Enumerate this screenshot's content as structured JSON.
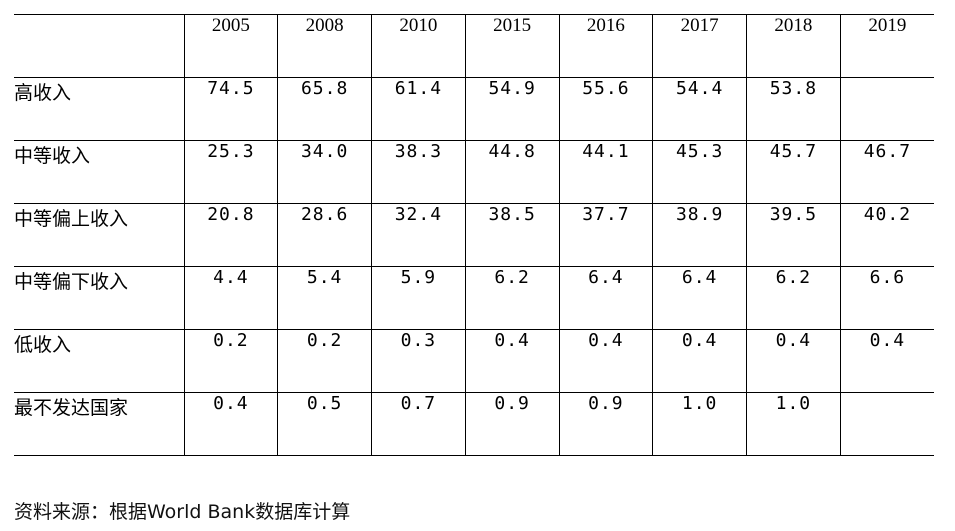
{
  "table": {
    "header_blank": "",
    "years": [
      "2005",
      "2008",
      "2010",
      "2015",
      "2016",
      "2017",
      "2018",
      "2019"
    ],
    "rows": [
      {
        "label": "高收入",
        "values": [
          "74.5",
          "65.8",
          "61.4",
          "54.9",
          "55.6",
          "54.4",
          "53.8",
          ""
        ]
      },
      {
        "label": "中等收入",
        "values": [
          "25.3",
          "34.0",
          "38.3",
          "44.8",
          "44.1",
          "45.3",
          "45.7",
          "46.7"
        ]
      },
      {
        "label": "中等偏上收入",
        "values": [
          "20.8",
          "28.6",
          "32.4",
          "38.5",
          "37.7",
          "38.9",
          "39.5",
          "40.2"
        ]
      },
      {
        "label": "中等偏下收入",
        "values": [
          "4.4",
          "5.4",
          "5.9",
          "6.2",
          "6.4",
          "6.4",
          "6.2",
          "6.6"
        ]
      },
      {
        "label": "低收入",
        "values": [
          "0.2",
          "0.2",
          "0.3",
          "0.4",
          "0.4",
          "0.4",
          "0.4",
          "0.4"
        ]
      },
      {
        "label": "最不发达国家",
        "values": [
          "0.4",
          "0.5",
          "0.7",
          "0.9",
          "0.9",
          "1.0",
          "1.0",
          ""
        ]
      }
    ]
  },
  "source_note": "资料来源：根据World Bank数据库计算"
}
